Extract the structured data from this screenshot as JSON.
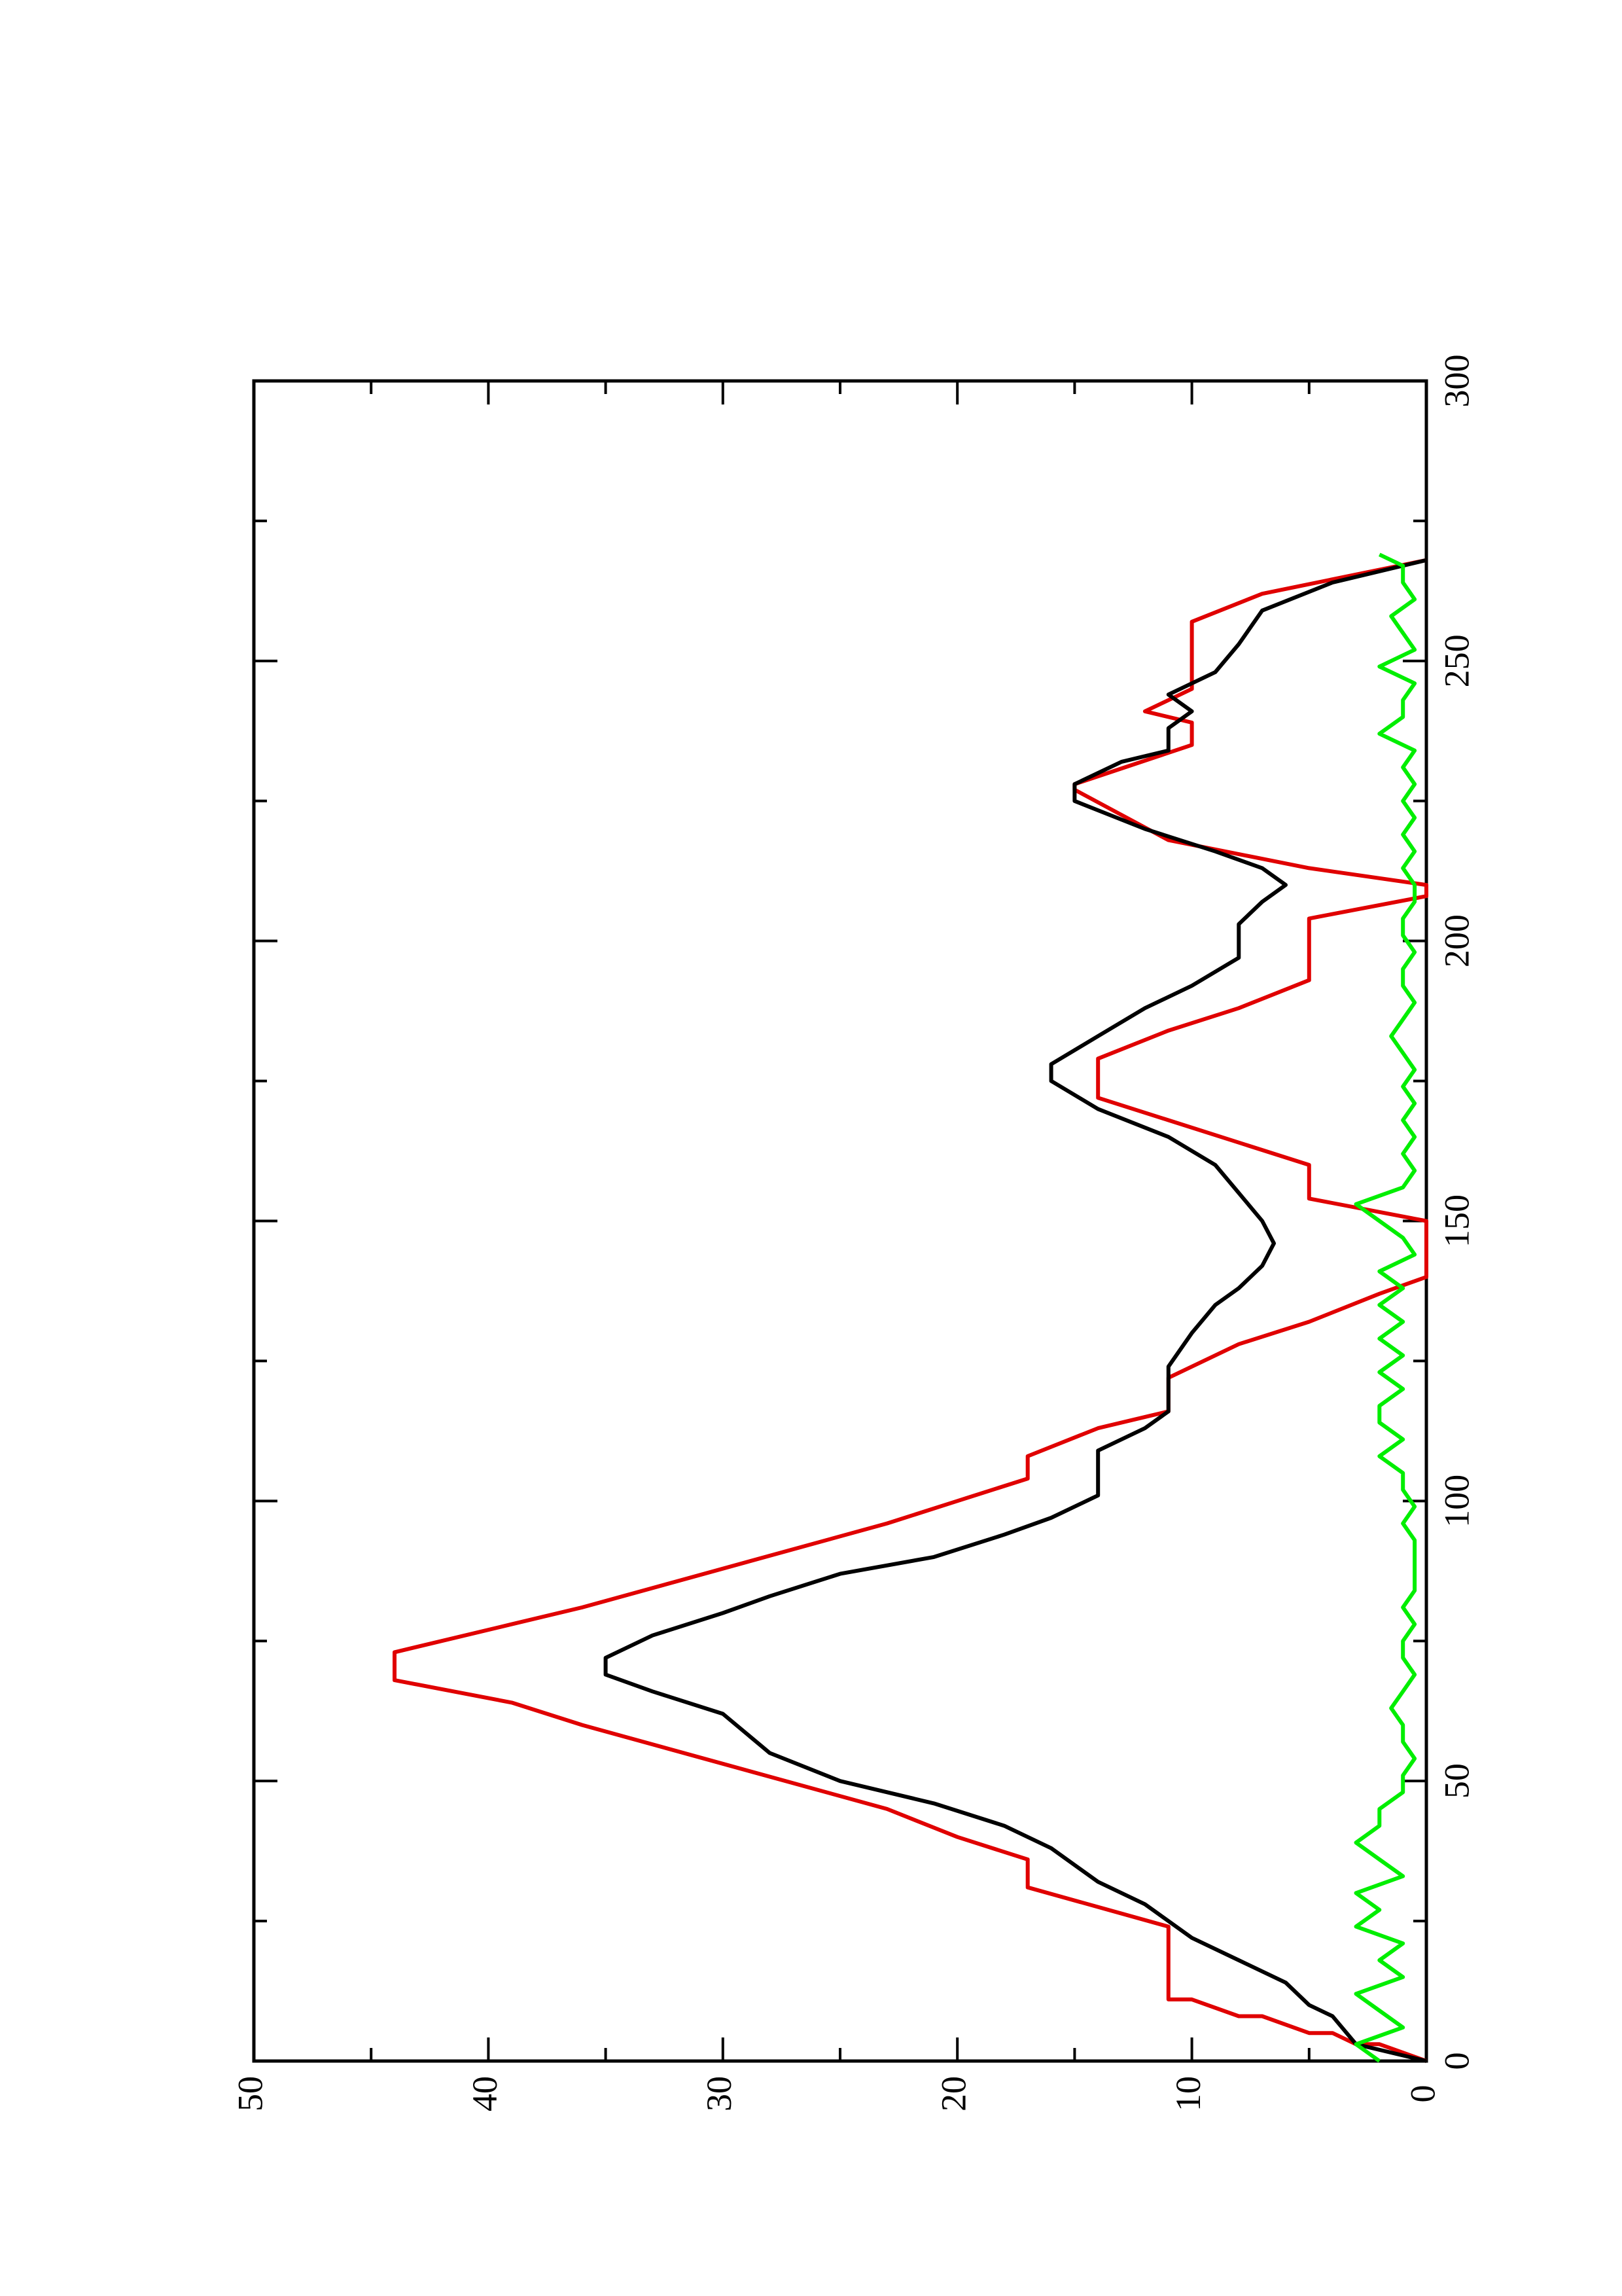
{
  "chart_data": {
    "type": "line",
    "xlim": [
      0,
      300
    ],
    "ylim": [
      0,
      50
    ],
    "xticks": [
      0,
      50,
      100,
      150,
      200,
      250,
      300
    ],
    "xminorticks": [
      25,
      75,
      125,
      175,
      225,
      275
    ],
    "yticks": [
      0,
      10,
      20,
      30,
      40,
      50
    ],
    "yminorticks": [
      5,
      15,
      25,
      35,
      45
    ],
    "rotation": -90,
    "series": [
      {
        "color": "#e00000",
        "x": [
          0,
          3,
          3,
          5,
          5,
          8,
          8,
          11,
          11,
          24,
          31,
          36,
          40,
          45,
          60,
          64,
          68,
          73,
          78,
          81,
          96,
          100,
          104,
          108,
          113,
          116,
          122,
          128,
          132,
          137,
          140,
          150,
          154,
          160,
          164,
          168,
          172,
          179,
          184,
          188,
          193,
          204,
          208,
          210,
          213,
          218,
          227,
          228,
          235,
          239,
          241,
          245,
          250,
          257,
          262,
          268
        ],
        "values": [
          0,
          2,
          3,
          4,
          5,
          7,
          8,
          10,
          11,
          11,
          17,
          17,
          20,
          23,
          36,
          39,
          44,
          44,
          39,
          36,
          23,
          20,
          17,
          17,
          14,
          11,
          11,
          8,
          5,
          2,
          0,
          0,
          5,
          5,
          8,
          11,
          14,
          14,
          11,
          8,
          5,
          5,
          0,
          0,
          5,
          11,
          15,
          15,
          10,
          10,
          12,
          10,
          10,
          10,
          7,
          0
        ]
      },
      {
        "color": "#000000",
        "x": [
          0,
          3,
          8,
          10,
          14,
          18,
          22,
          28,
          32,
          38,
          42,
          46,
          50,
          55,
          62,
          66,
          69,
          72,
          76,
          80,
          83,
          87,
          90,
          94,
          97,
          101,
          105,
          109,
          113,
          116,
          120,
          124,
          130,
          135,
          138,
          142,
          146,
          150,
          155,
          160,
          165,
          170,
          175,
          178,
          183,
          188,
          192,
          197,
          203,
          207,
          210,
          213,
          216,
          220,
          225,
          228,
          232,
          234,
          238,
          241,
          244,
          248,
          253,
          259,
          264,
          268
        ],
        "values": [
          0,
          3,
          4,
          5,
          6,
          8,
          10,
          12,
          14,
          16,
          18,
          21,
          25,
          28,
          30,
          33,
          35,
          35,
          33,
          30,
          28,
          25,
          21,
          18,
          16,
          14,
          14,
          14,
          12,
          11,
          11,
          11,
          10,
          9,
          8,
          7,
          6.5,
          7,
          8,
          9,
          11,
          14,
          16,
          16,
          14,
          12,
          10,
          8,
          8,
          7,
          6,
          7,
          9,
          12,
          15,
          15,
          13,
          11,
          11,
          10,
          11,
          9,
          8,
          7,
          4,
          0
        ]
      },
      {
        "color": "#00ee00",
        "x": [
          0,
          3,
          6,
          9,
          12,
          15,
          18,
          21,
          24,
          27,
          30,
          33,
          36,
          39,
          42,
          45,
          48,
          51,
          54,
          57,
          60,
          63,
          66,
          69,
          72,
          75,
          78,
          81,
          84,
          87,
          90,
          93,
          96,
          99,
          102,
          105,
          108,
          111,
          114,
          117,
          120,
          123,
          126,
          129,
          132,
          135,
          138,
          141,
          144,
          147,
          150,
          153,
          156,
          159,
          162,
          165,
          168,
          171,
          174,
          177,
          180,
          183,
          186,
          189,
          192,
          195,
          198,
          201,
          204,
          207,
          210,
          213,
          216,
          219,
          222,
          225,
          228,
          231,
          234,
          237,
          240,
          243,
          246,
          249,
          252,
          255,
          258,
          261,
          264,
          267,
          269
        ],
        "values": [
          2,
          3,
          1,
          2,
          3,
          1,
          2,
          1,
          3,
          2,
          3,
          1,
          2,
          3,
          2,
          2,
          1,
          1,
          0.5,
          1,
          1,
          1.5,
          1,
          0.5,
          1,
          1,
          0.5,
          1,
          0.5,
          0.5,
          0.5,
          0.5,
          1,
          0.5,
          1,
          1,
          2,
          1,
          2,
          2,
          1,
          2,
          1,
          2,
          1,
          2,
          1,
          2,
          0.5,
          1,
          2,
          3,
          1,
          0.5,
          1,
          0.5,
          1,
          0.5,
          1,
          0.5,
          1,
          1.5,
          1,
          0.5,
          1,
          1,
          0.5,
          1,
          1,
          0.5,
          0.5,
          1,
          0.5,
          1,
          0.5,
          1,
          0.5,
          1,
          0.5,
          2,
          1,
          1,
          0.5,
          2,
          0.5,
          1,
          1.5,
          0.5,
          1,
          1,
          2
        ]
      }
    ]
  }
}
